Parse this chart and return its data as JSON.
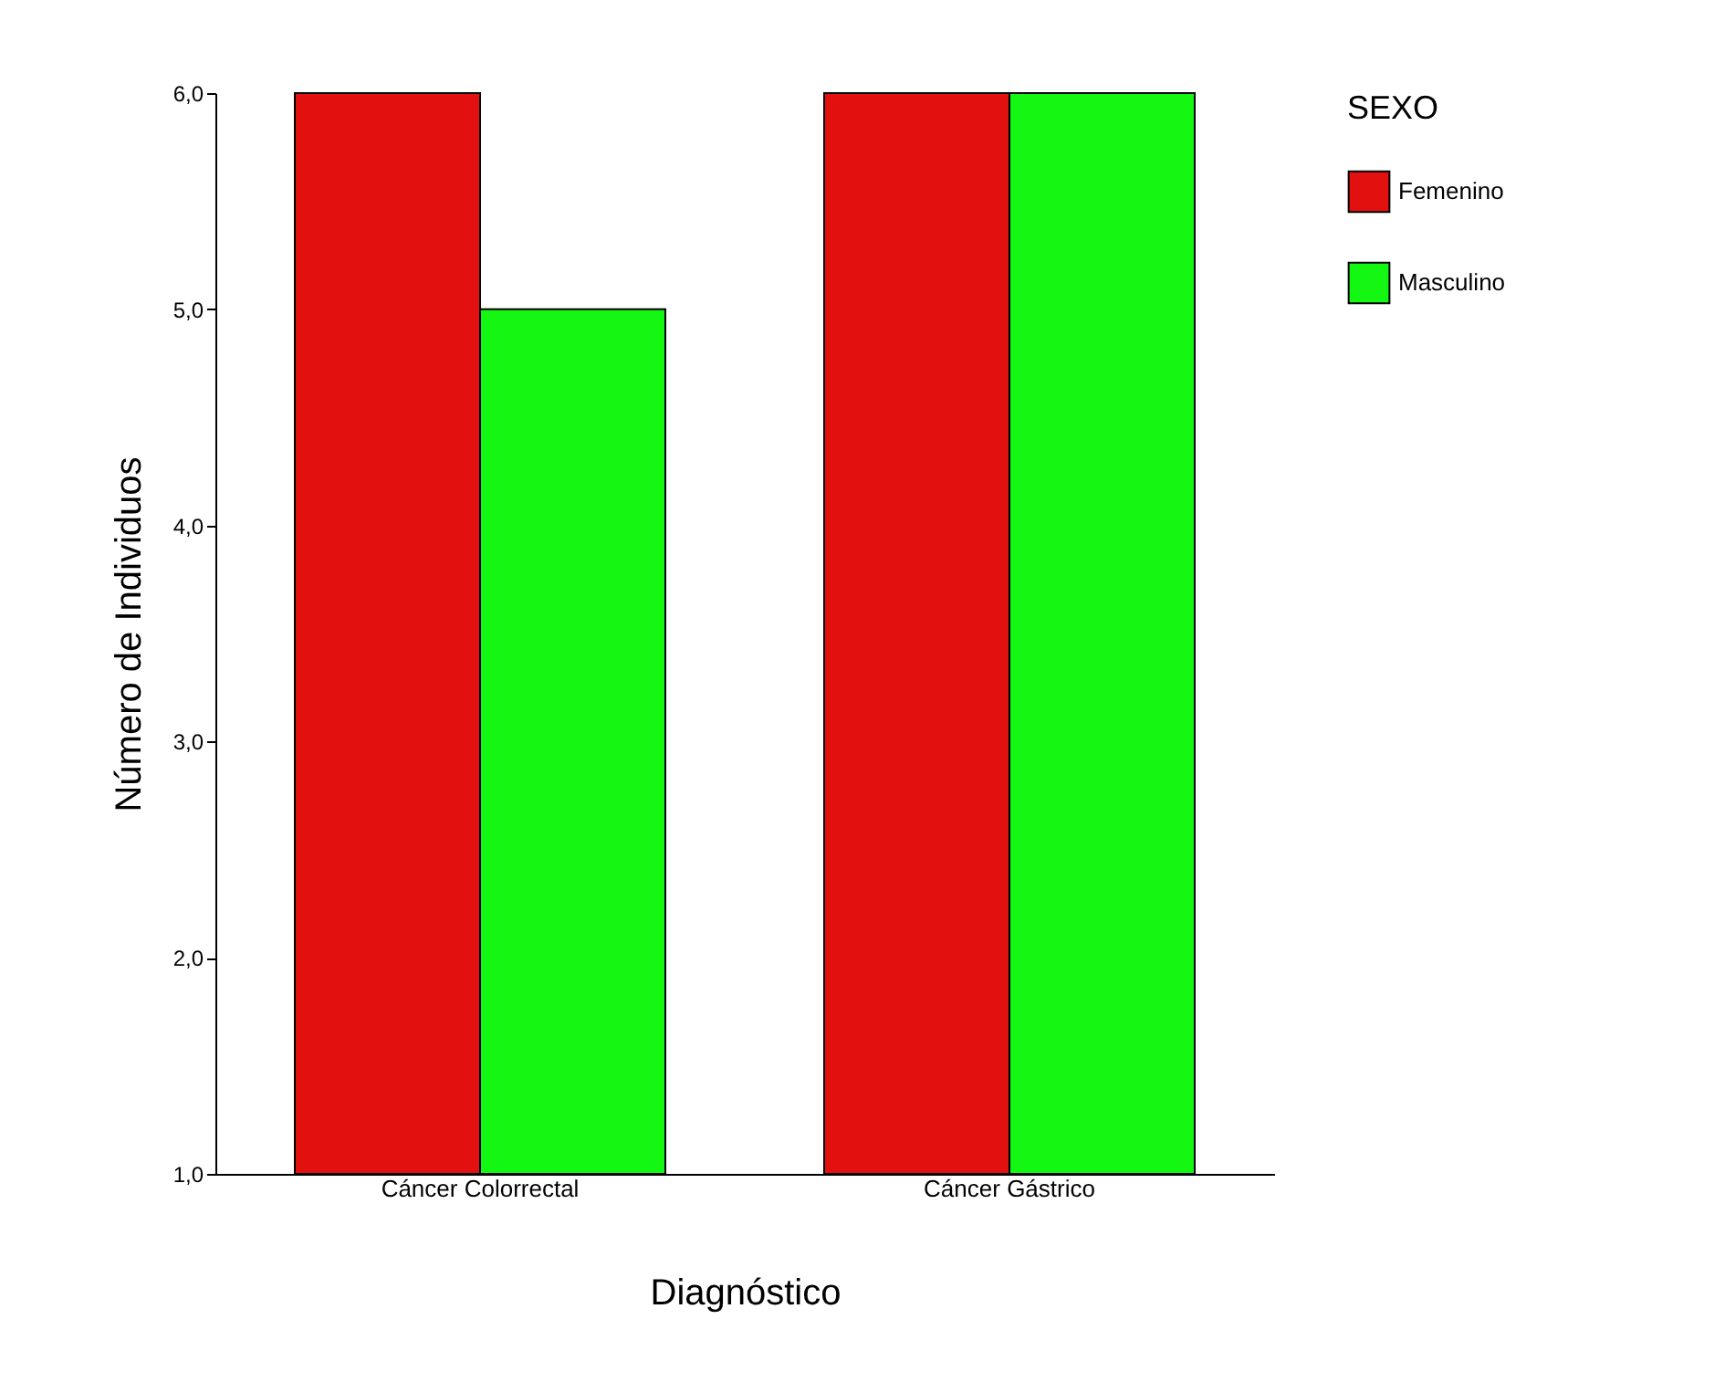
{
  "chart_data": {
    "type": "bar",
    "xlabel": "Diagnóstico",
    "ylabel": "Número de Individuos",
    "legend_title": "SEXO",
    "legend": "right",
    "grid": false,
    "categories": [
      "Cáncer Colorrectal",
      "Cáncer Gástrico"
    ],
    "series": [
      {
        "name": "Femenino",
        "color": "#e31010",
        "values": [
          6,
          6
        ]
      },
      {
        "name": "Masculino",
        "color": "#13f713",
        "values": [
          5,
          6
        ]
      }
    ],
    "ylim": [
      1,
      6
    ],
    "yticks": [
      {
        "value": 1,
        "label": "1,0"
      },
      {
        "value": 2,
        "label": "2,0"
      },
      {
        "value": 3,
        "label": "3,0"
      },
      {
        "value": 4,
        "label": "4,0"
      },
      {
        "value": 5,
        "label": "5,0"
      },
      {
        "value": 6,
        "label": "6,0"
      }
    ]
  }
}
